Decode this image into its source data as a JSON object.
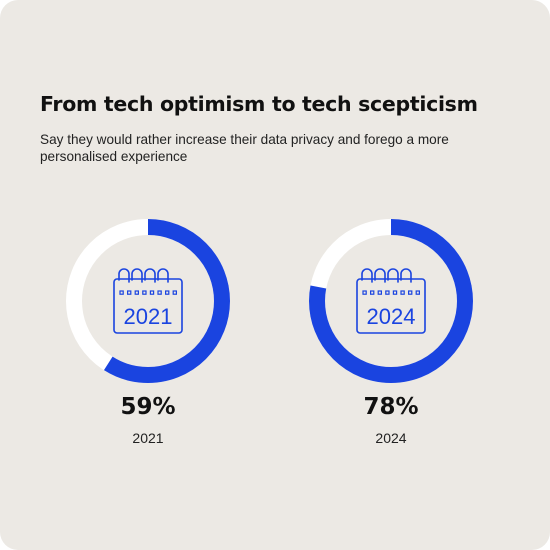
{
  "title": "From tech optimism to tech scepticism",
  "subtitle": "Say they would rather increase their data privacy and forego a more personalised experience",
  "colors": {
    "accent": "#1a44e0",
    "track": "#ffffff",
    "background": "#ece9e4"
  },
  "chart_data": [
    {
      "type": "pie",
      "category": "2021",
      "value": 59,
      "value_label": "59%",
      "icon": "calendar-icon",
      "icon_label": "2021"
    },
    {
      "type": "pie",
      "category": "2024",
      "value": 78,
      "value_label": "78%",
      "icon": "calendar-icon",
      "icon_label": "2024"
    }
  ]
}
